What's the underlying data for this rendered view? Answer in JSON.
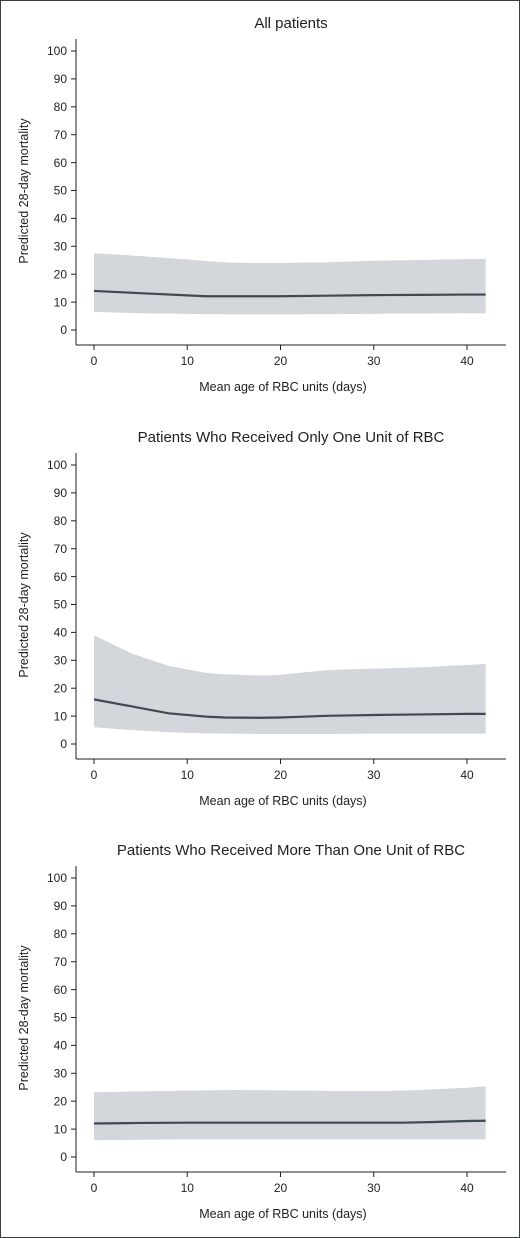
{
  "colors": {
    "band": "#d3d6da",
    "line": "#3f4a56",
    "axis": "#1f1f1f",
    "frame": "#3a3f45"
  },
  "chart_data": [
    {
      "type": "line",
      "title": "All patients",
      "xlabel": "Mean age of RBC units (days)",
      "ylabel": "Predicted 28-day mortality",
      "xlim": [
        0,
        42
      ],
      "ylim": [
        0,
        100
      ],
      "x_ticks": [
        0,
        10,
        20,
        30,
        40
      ],
      "y_ticks": [
        0,
        10,
        20,
        30,
        40,
        50,
        60,
        70,
        80,
        90,
        100
      ],
      "grid": false,
      "x": [
        0,
        5,
        10,
        12,
        15,
        20,
        25,
        30,
        35,
        40,
        42
      ],
      "series": [
        {
          "values": [
            14,
            13.2,
            12.4,
            12.1,
            12.1,
            12.1,
            12.3,
            12.5,
            12.6,
            12.7,
            12.7
          ],
          "lower": [
            6.5,
            6,
            5.8,
            5.7,
            5.6,
            5.6,
            5.7,
            5.8,
            5.9,
            6,
            6
          ],
          "upper": [
            27.5,
            26.5,
            25.3,
            24.7,
            24.1,
            24,
            24.3,
            24.8,
            25.1,
            25.4,
            25.5
          ]
        }
      ]
    },
    {
      "type": "line",
      "title": "Patients Who Received Only One Unit of RBC",
      "xlabel": "Mean age of RBC units (days)",
      "ylabel": "Predicted 28-day mortality",
      "xlim": [
        0,
        42
      ],
      "ylim": [
        0,
        100
      ],
      "x_ticks": [
        0,
        10,
        20,
        30,
        40
      ],
      "y_ticks": [
        0,
        10,
        20,
        30,
        40,
        50,
        60,
        70,
        80,
        90,
        100
      ],
      "grid": false,
      "x": [
        0,
        4,
        8,
        12,
        14,
        18,
        20,
        25,
        30,
        35,
        40,
        42
      ],
      "series": [
        {
          "values": [
            16,
            13.5,
            11,
            9.8,
            9.5,
            9.4,
            9.5,
            10.1,
            10.4,
            10.6,
            10.8,
            10.8
          ],
          "lower": [
            6,
            5,
            4.2,
            3.8,
            3.7,
            3.6,
            3.6,
            3.6,
            3.7,
            3.7,
            3.7,
            3.7
          ],
          "upper": [
            39,
            32.5,
            28,
            25.5,
            25,
            24.5,
            24.8,
            26.5,
            27,
            27.5,
            28.3,
            28.7
          ]
        }
      ]
    },
    {
      "type": "line",
      "title": "Patients Who Received More Than One Unit of RBC",
      "xlabel": "Mean age of RBC units (days)",
      "ylabel": "Predicted 28-day mortality",
      "xlim": [
        0,
        42
      ],
      "ylim": [
        0,
        100
      ],
      "x_ticks": [
        0,
        10,
        20,
        30,
        40
      ],
      "y_ticks": [
        0,
        10,
        20,
        30,
        40,
        50,
        60,
        70,
        80,
        90,
        100
      ],
      "grid": false,
      "x": [
        0,
        5,
        10,
        15,
        20,
        25,
        30,
        33,
        36,
        40,
        42
      ],
      "series": [
        {
          "values": [
            12,
            12.2,
            12.3,
            12.3,
            12.3,
            12.3,
            12.3,
            12.3,
            12.5,
            12.9,
            13
          ],
          "lower": [
            6,
            6.2,
            6.3,
            6.3,
            6.3,
            6.3,
            6.3,
            6.3,
            6.3,
            6.3,
            6.3
          ],
          "upper": [
            23.2,
            23.5,
            23.8,
            24,
            23.9,
            23.7,
            23.6,
            23.8,
            24.2,
            24.8,
            25.3
          ]
        }
      ]
    }
  ]
}
